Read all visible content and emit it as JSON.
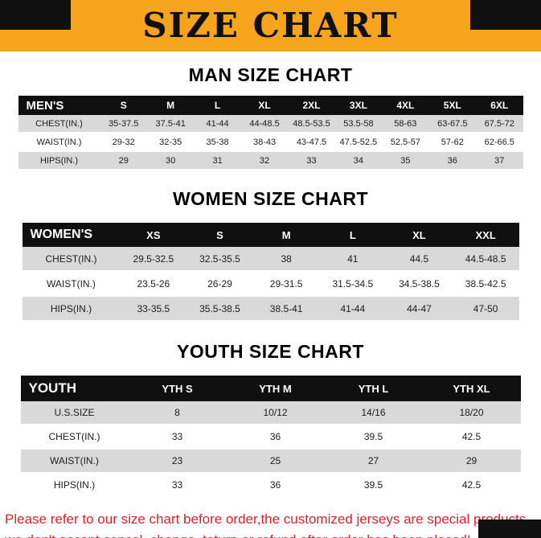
{
  "page": {
    "banner_title": "SIZE CHART",
    "banner_bg": "#f7a41d",
    "accent_black": "#101010",
    "stripe_gray": "#d9d9d9"
  },
  "chart_data": [
    {
      "type": "table",
      "title": "MAN SIZE CHART",
      "columns": [
        "MEN'S",
        "S",
        "M",
        "L",
        "XL",
        "2XL",
        "3XL",
        "4XL",
        "5XL",
        "6XL"
      ],
      "rows": [
        [
          "CHEST(IN.)",
          "35-37.5",
          "37.5-41",
          "41-44",
          "44-48.5",
          "48.5-53.5",
          "53.5-58",
          "58-63",
          "63-67.5",
          "67.5-72"
        ],
        [
          "WAIST(IN.)",
          "29-32",
          "32-35",
          "35-38",
          "38-43",
          "43-47.5",
          "47.5-52.5",
          "52.5-57",
          "57-62",
          "62-66.5"
        ],
        [
          "HIPS(IN.)",
          "29",
          "30",
          "31",
          "32",
          "33",
          "34",
          "35",
          "36",
          "37"
        ]
      ]
    },
    {
      "type": "table",
      "title": "WOMEN SIZE CHART",
      "columns": [
        "WOMEN'S",
        "XS",
        "S",
        "M",
        "L",
        "XL",
        "XXL"
      ],
      "rows": [
        [
          "CHEST(IN.)",
          "29.5-32.5",
          "32.5-35.5",
          "38",
          "41",
          "44.5",
          "44.5-48.5"
        ],
        [
          "WAIST(IN.)",
          "23.5-26",
          "26-29",
          "29-31.5",
          "31.5-34.5",
          "34.5-38.5",
          "38.5-42.5"
        ],
        [
          "HIPS(IN.)",
          "33-35.5",
          "35.5-38.5",
          "38.5-41",
          "41-44",
          "44-47",
          "47-50"
        ]
      ]
    },
    {
      "type": "table",
      "title": "YOUTH SIZE CHART",
      "columns": [
        "YOUTH",
        "YTH S",
        "YTH M",
        "YTH L",
        "YTH XL"
      ],
      "rows": [
        [
          "U.S.SIZE",
          "8",
          "10/12",
          "14/16",
          "18/20"
        ],
        [
          "CHEST(IN.)",
          "33",
          "36",
          "39.5",
          "42.5"
        ],
        [
          "WAIST(IN.)",
          "23",
          "25",
          "27",
          "29"
        ],
        [
          "HIPS(IN.)",
          "33",
          "36",
          "39.5",
          "42.5"
        ]
      ]
    }
  ],
  "footer": {
    "line1": "Please refer to our size chart before order,the customized jerseys are special products,",
    "line2": "we don't accept cancel, change, teturn or refund after order has been placed!",
    "color": "#e32127"
  }
}
